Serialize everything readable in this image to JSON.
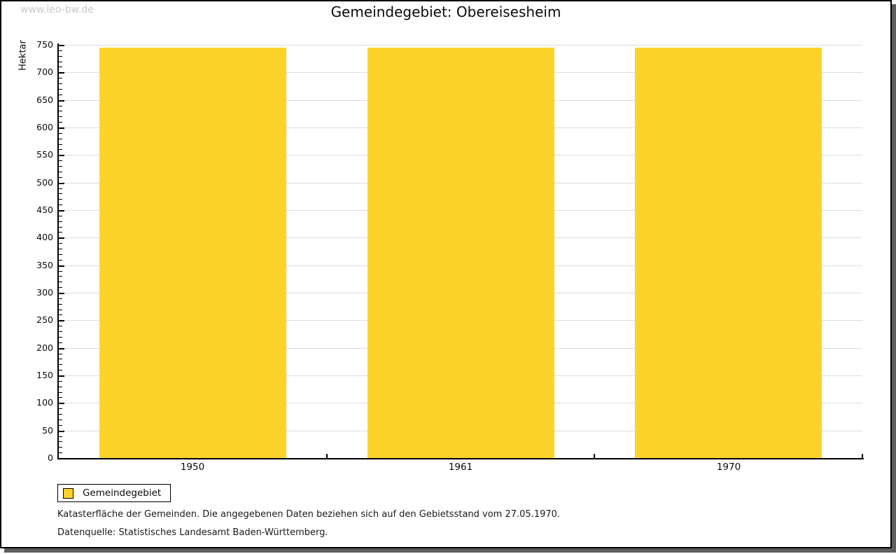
{
  "watermark": "www.leo-bw.de",
  "title": "Gemeindegebiet: Obereisesheim",
  "chart_data": {
    "type": "bar",
    "title": "Gemeindegebiet: Obereisesheim",
    "categories": [
      "1950",
      "1961",
      "1970"
    ],
    "series": [
      {
        "name": "Gemeindegebiet",
        "color": "#fcd32b",
        "values": [
          745,
          745,
          745
        ]
      }
    ],
    "xlabel": "",
    "ylabel": "Hektar",
    "ylim": [
      0,
      750
    ],
    "ytick_major": 50,
    "ytick_minor": 10,
    "grid": true,
    "legend_position": "bottom-left"
  },
  "legend": {
    "items": [
      {
        "label": "Gemeindegebiet",
        "color": "#fcd32b"
      }
    ]
  },
  "footnotes": [
    "Katasterfläche der Gemeinden. Die angegebenen Daten beziehen sich auf den Gebietsstand vom 27.05.1970.",
    "Datenquelle: Statistisches Landesamt Baden-Württemberg."
  ],
  "colors": {
    "bar": "#fcd32b",
    "gridline": "#dcdcdc",
    "axis": "#000000",
    "watermark_text": "#c9c9c9",
    "window_shadow": "#5e5e5e",
    "background": "#ffffff"
  }
}
